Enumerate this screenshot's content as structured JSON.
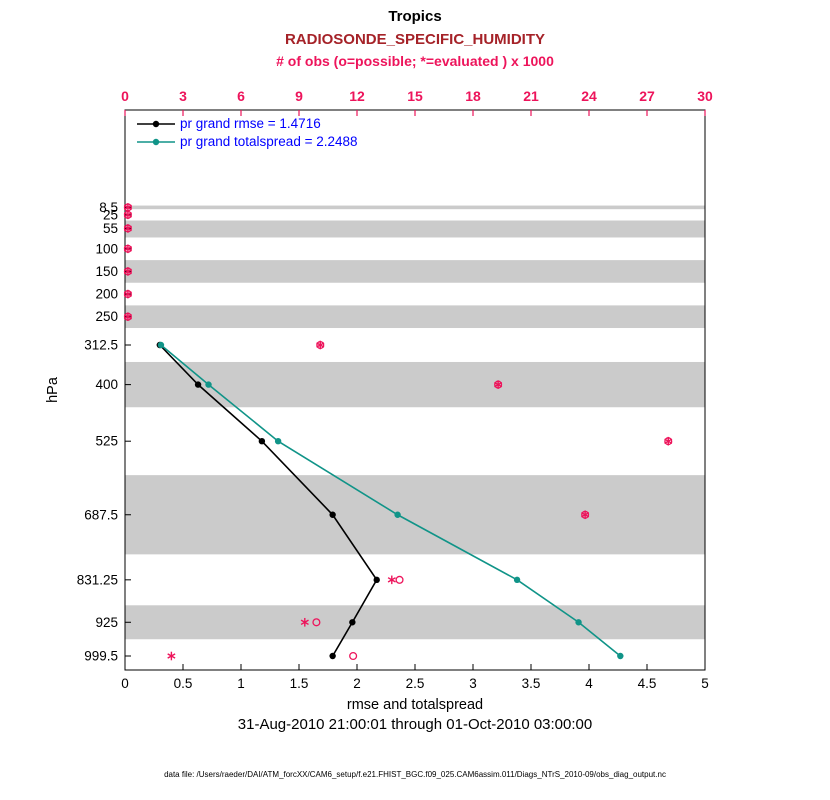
{
  "header": {
    "title": "Tropics",
    "subtitle": "RADIOSONDE_SPECIFIC_HUMIDITY",
    "top_axis_label": "# of obs (o=possible; *=evaluated ) x 1000"
  },
  "footer": {
    "xlabel": "rmse and totalspread",
    "timespan": "31-Aug-2010 21:00:01 through 01-Oct-2010 03:00:00",
    "datafile": "data file: /Users/raeder/DAI/ATM_forcXX/CAM6_setup/f.e21.FHIST_BGC.f09_025.CAM6assim.011/Diags_NTrS_2010-09/obs_diag_output.nc"
  },
  "colors": {
    "obs_pink": "#ed145b",
    "subtitle_red": "#a52228",
    "legend_blue": "#0000ff",
    "rmse_black": "#000000",
    "spread_teal": "#109488",
    "band_gray": "#cbcbcb"
  },
  "legend": {
    "entries": [
      {
        "label": "pr grand rmse = 1.4716",
        "series": "rmse"
      },
      {
        "label": "pr grand totalspread = 2.2488",
        "series": "totalspread"
      }
    ]
  },
  "chart_data": {
    "type": "line",
    "title": "Tropics",
    "subtitle": "RADIOSONDE_SPECIFIC_HUMIDITY",
    "ylabel": "hPa",
    "xlabel_bottom": "rmse and totalspread",
    "xlabel_top": "# of obs (o=possible; *=evaluated ) x 1000",
    "x_bottom": {
      "min": 0,
      "max": 5,
      "ticks": [
        0,
        0.5,
        1,
        1.5,
        2,
        2.5,
        3,
        3.5,
        4,
        4.5,
        5
      ]
    },
    "x_top": {
      "min": 0,
      "max": 30,
      "ticks": [
        0,
        3,
        6,
        9,
        12,
        15,
        18,
        21,
        24,
        27,
        30
      ]
    },
    "y_axis_direction": "pressure increasing downward, linear in hPa",
    "pressure_levels_hPa": [
      8.5,
      25,
      55,
      100,
      150,
      200,
      250,
      312.5,
      400,
      525,
      687.5,
      831.25,
      925,
      999.5
    ],
    "series": [
      {
        "name": "pr grand rmse = 1.4716",
        "key": "rmse",
        "values": [
          null,
          null,
          null,
          null,
          null,
          null,
          null,
          0.3,
          0.63,
          1.18,
          1.79,
          2.17,
          1.96,
          1.79
        ]
      },
      {
        "name": "pr grand totalspread = 2.2488",
        "key": "totalspread",
        "values": [
          null,
          null,
          null,
          null,
          null,
          null,
          null,
          0.31,
          0.72,
          1.32,
          2.35,
          3.38,
          3.91,
          4.27
        ]
      }
    ],
    "obs_counts_x1000": {
      "possible": [
        0.15,
        0.15,
        0.15,
        0.15,
        0.15,
        0.15,
        0.15,
        10.1,
        19.3,
        28.1,
        23.8,
        14.2,
        9.9,
        11.8
      ],
      "evaluated": [
        0.15,
        0.15,
        0.15,
        0.15,
        0.15,
        0.15,
        0.15,
        10.1,
        19.3,
        28.1,
        23.8,
        13.8,
        9.3,
        2.4
      ]
    },
    "gray_bands_hPa": [
      [
        4.5,
        12.5
      ],
      [
        37.5,
        75
      ],
      [
        125,
        175
      ],
      [
        225,
        275
      ],
      [
        350,
        450
      ],
      [
        600,
        775
      ],
      [
        887.5,
        962.5
      ]
    ],
    "grid": false,
    "legend_position": "top-left inside plot"
  }
}
